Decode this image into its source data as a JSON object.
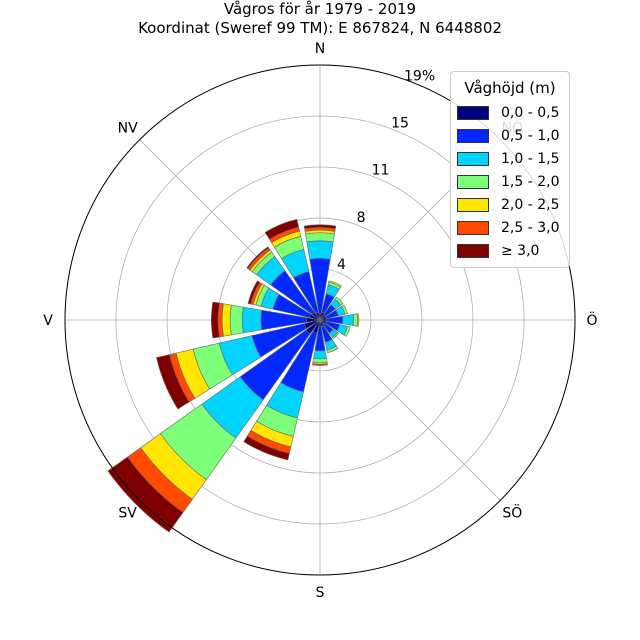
{
  "title": {
    "line1": "Vågros för år 1979 - 2019",
    "line2": "Koordinat (Sweref 99 TM): E 867824, N 6448802"
  },
  "chart_data": {
    "type": "polar-stacked-bar",
    "directions": [
      "N",
      "NNÖ",
      "NÖ",
      "ÖNÖ",
      "Ö",
      "ÖSÖ",
      "SÖ",
      "SSÖ",
      "S",
      "SSV",
      "SV",
      "VSV",
      "V",
      "VNV",
      "NV",
      "NNV"
    ],
    "compass_labels": [
      {
        "angle": 0,
        "text": "N"
      },
      {
        "angle": 45,
        "text": "NÖ"
      },
      {
        "angle": 90,
        "text": "Ö"
      },
      {
        "angle": 135,
        "text": "SÖ"
      },
      {
        "angle": 180,
        "text": "S"
      },
      {
        "angle": 225,
        "text": "SV"
      },
      {
        "angle": 270,
        "text": "V"
      },
      {
        "angle": 315,
        "text": "NV"
      }
    ],
    "radial_ticks": [
      "4",
      "8",
      "11",
      "15",
      "19%"
    ],
    "radial_tick_values": [
      3.8,
      7.6,
      11.4,
      15.2,
      19.0
    ],
    "rmax": 19.0,
    "legend_title": "Våghöjd (m)",
    "series": [
      {
        "name": "0,0 - 0,5",
        "color": "#000080",
        "values": [
          0.5,
          0.6,
          0.5,
          0.5,
          0.5,
          0.5,
          0.4,
          0.5,
          0.5,
          1.0,
          1.3,
          1.2,
          1.0,
          0.8,
          0.7,
          0.6
        ]
      },
      {
        "name": "0,5 - 1,0",
        "color": "#0028ff",
        "values": [
          4.1,
          1.4,
          0.9,
          0.9,
          1.2,
          1.0,
          0.8,
          1.2,
          1.8,
          4.5,
          6.0,
          4.0,
          3.4,
          2.8,
          3.8,
          3.1
        ]
      },
      {
        "name": "1,0 - 1,5",
        "color": "#00d4ff",
        "values": [
          1.3,
          0.7,
          0.5,
          0.5,
          0.8,
          0.6,
          0.4,
          0.6,
          0.6,
          2.0,
          3.5,
          2.5,
          1.4,
          0.9,
          1.3,
          1.7
        ]
      },
      {
        "name": "1,5 - 2,0",
        "color": "#7dff7a",
        "values": [
          0.6,
          0.2,
          0.2,
          0.2,
          0.3,
          0.2,
          0.1,
          0.2,
          0.3,
          1.4,
          3.8,
          2.0,
          0.9,
          0.4,
          0.4,
          1.0
        ]
      },
      {
        "name": "2,0 - 2,5",
        "color": "#ffe600",
        "values": [
          0.2,
          0.1,
          0.0,
          0.0,
          0.1,
          0.0,
          0.0,
          0.0,
          0.1,
          0.8,
          1.8,
          1.3,
          0.6,
          0.2,
          0.2,
          0.4
        ]
      },
      {
        "name": "2,5 - 3,0",
        "color": "#ff4a00",
        "values": [
          0.2,
          0.0,
          0.0,
          0.0,
          0.0,
          0.0,
          0.0,
          0.0,
          0.1,
          0.5,
          1.2,
          0.5,
          0.3,
          0.2,
          0.2,
          0.3
        ]
      },
      {
        "name": "≥ 3,0",
        "color": "#800000",
        "values": [
          0.2,
          0.0,
          0.0,
          0.0,
          0.0,
          0.0,
          0.0,
          0.0,
          0.0,
          0.5,
          1.8,
          1.0,
          0.5,
          0.2,
          0.1,
          0.6
        ]
      }
    ]
  }
}
